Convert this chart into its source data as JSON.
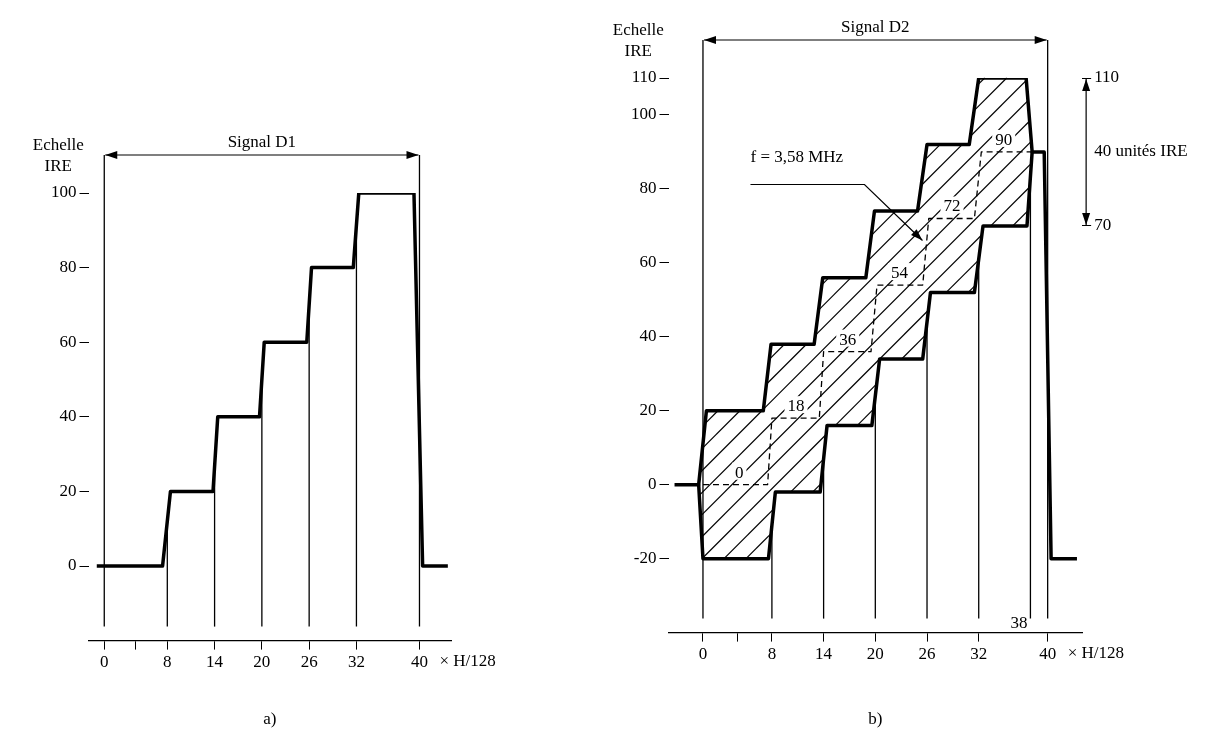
{
  "chart_data": [
    {
      "type": "line",
      "xlabel": "× H/128",
      "ylabel": "Echelle IRE",
      "xlim": [
        -2,
        44
      ],
      "xticks": [
        0,
        {
          "value": 4,
          "label": null
        },
        8,
        14,
        20,
        26,
        32,
        40
      ],
      "ylim": [
        -20,
        100
      ],
      "yticks": [
        0,
        20,
        40,
        60,
        80,
        100
      ],
      "grid": false,
      "legend": false,
      "marker": "none",
      "series": [
        {
          "color": "#000000",
          "line_style": "solid",
          "x": [
            -0.95,
            7.4,
            8.4,
            13.8,
            14.4,
            19.7,
            20.3,
            25.7,
            26.3,
            31.6,
            32.3,
            39.3,
            40.4,
            43.6
          ],
          "values": [
            0,
            0,
            20,
            20,
            40,
            40,
            60,
            60,
            80,
            80,
            100,
            100,
            0,
            0
          ]
        }
      ],
      "ref_lines": [
        {
          "axis": "x",
          "value": 0
        },
        {
          "axis": "x",
          "value": 8
        },
        {
          "axis": "x",
          "value": 14
        },
        {
          "axis": "x",
          "value": 20
        },
        {
          "axis": "x",
          "value": 26
        },
        {
          "axis": "x",
          "value": 32
        },
        {
          "axis": "x",
          "value": 40
        }
      ],
      "annotations": [
        "Signal D1",
        "a)"
      ]
    },
    {
      "type": "line",
      "xlabel": "× H/128",
      "ylabel": "Echelle IRE",
      "y2label": "40 unités IRE",
      "xlim": [
        -4,
        44
      ],
      "xticks": [
        0,
        {
          "value": 4,
          "label": null
        },
        8,
        14,
        20,
        26,
        32,
        40
      ],
      "ylim": [
        -40,
        110
      ],
      "yticks": [
        -20,
        0,
        20,
        40,
        60,
        80,
        100,
        110
      ],
      "y2lim": [
        -40,
        110
      ],
      "y2ticks": [
        70,
        110
      ],
      "grid": false,
      "legend": false,
      "marker": "none",
      "series": [
        {
          "color": "#000000",
          "line_style": "solid",
          "x": [
            -3.3,
            -0.5,
            0.4,
            7,
            7.9,
            12.9,
            13.9,
            18.9,
            19.9,
            24.9,
            26,
            30.9,
            32,
            37.5,
            38.2,
            39.6,
            40.4,
            43.4
          ],
          "values": [
            0,
            0,
            20,
            20,
            38,
            38,
            56,
            56,
            74,
            74,
            92,
            92,
            110,
            110,
            90,
            90,
            -20,
            -20
          ]
        },
        {
          "color": "#000000",
          "line_style": "solid",
          "x": [
            -0.5,
            0,
            7.6,
            8.4,
            13.6,
            14.4,
            19.6,
            20.5,
            25.5,
            26.4,
            31.5,
            32.5,
            37.6,
            38.2
          ],
          "values": [
            0,
            -20,
            -20,
            -2,
            -2,
            16,
            16,
            34,
            34,
            52,
            52,
            70,
            70,
            90
          ]
        },
        {
          "color": "#000000",
          "line_style": "dashed",
          "x": [
            0,
            7.5,
            8,
            13.5,
            14,
            19.5,
            20.2,
            25.5,
            26.2,
            31.5,
            32.3,
            38.2
          ],
          "values": [
            0,
            0,
            18,
            18,
            36,
            36,
            54,
            54,
            72,
            72,
            90,
            90
          ]
        }
      ],
      "ref_lines": [
        {
          "axis": "x",
          "value": 0
        },
        {
          "axis": "x",
          "value": 8
        },
        {
          "axis": "x",
          "value": 14
        },
        {
          "axis": "x",
          "value": 20
        },
        {
          "axis": "x",
          "value": 26
        },
        {
          "axis": "x",
          "value": 32
        },
        {
          "axis": "x",
          "value": 38,
          "label": "38"
        },
        {
          "axis": "x",
          "value": 40
        }
      ],
      "annotations": [
        "Signal D2",
        "f = 3,58 MHz",
        {
          "text": "0",
          "x": 4.2,
          "y": 0
        },
        {
          "text": "18",
          "x": 10.8,
          "y": 18
        },
        {
          "text": "36",
          "x": 16.8,
          "y": 36
        },
        {
          "text": "54",
          "x": 22.8,
          "y": 54
        },
        {
          "text": "72",
          "x": 28.9,
          "y": 72
        },
        {
          "text": "90",
          "x": 34.9,
          "y": 90
        },
        "b)"
      ]
    }
  ]
}
